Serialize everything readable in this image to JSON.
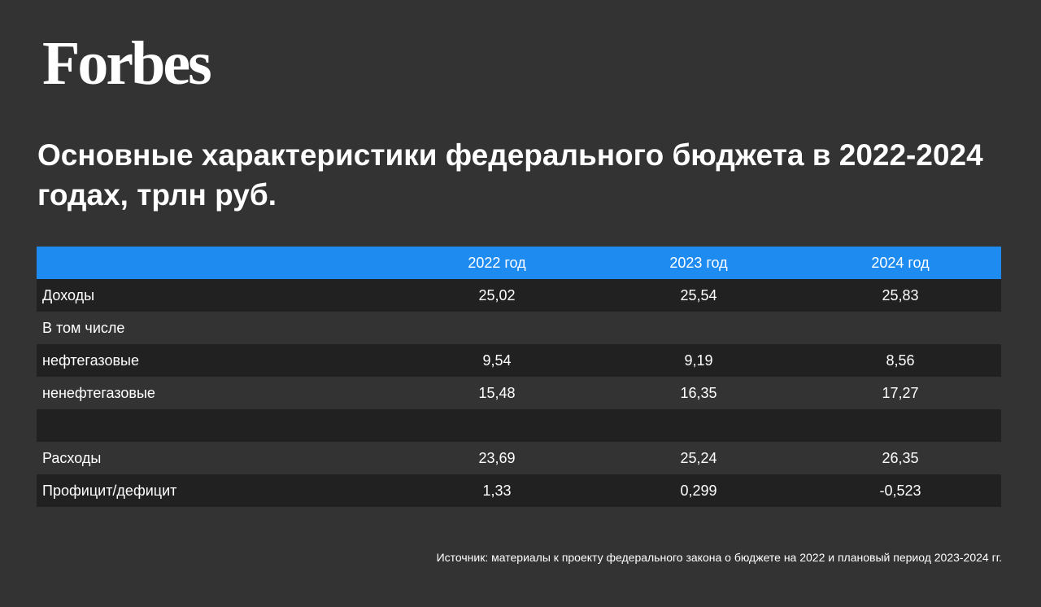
{
  "brand": "Forbes",
  "chart_data": {
    "type": "table",
    "title": "Основные характеристики федерального бюджета в 2022-2024 годах, трлн руб.",
    "columns": [
      "",
      "2022 год",
      "2023 год",
      "2024 год"
    ],
    "rows": [
      {
        "label": "Доходы",
        "values": [
          "25,02",
          "25,54",
          "25,83"
        ]
      },
      {
        "label": "В том числе",
        "values": [
          "",
          "",
          ""
        ]
      },
      {
        "label": "нефтегазовые",
        "values": [
          "9,54",
          "9,19",
          "8,56"
        ]
      },
      {
        "label": "ненефтегазовые",
        "values": [
          "15,48",
          "16,35",
          "17,27"
        ]
      },
      {
        "label": "",
        "values": [
          "",
          "",
          ""
        ]
      },
      {
        "label": "Расходы",
        "values": [
          "23,69",
          "25,24",
          "26,35"
        ]
      },
      {
        "label": "Профицит/дефицит",
        "values": [
          "1,33",
          "0,299",
          "-0,523"
        ]
      }
    ],
    "source": "Источник: материалы к  проекту федерального закона о бюджете на 2022 и плановый период 2023-2024 гг."
  },
  "colors": {
    "background": "#333334",
    "header_row": "#1e8bf0",
    "dark_row": "#212122",
    "text": "#ffffff"
  }
}
